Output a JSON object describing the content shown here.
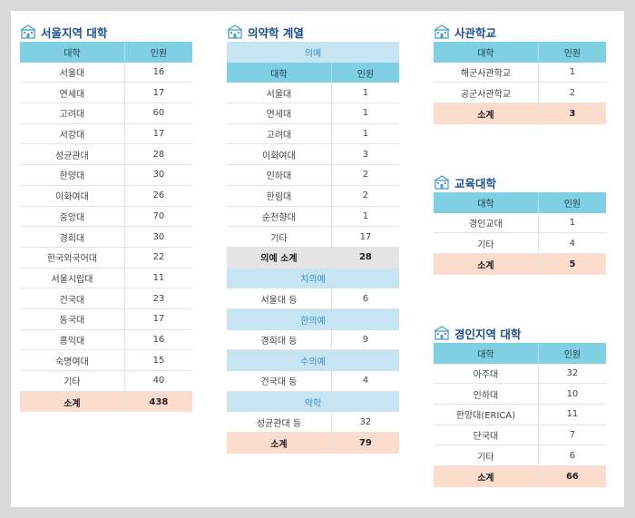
{
  "seoul": {
    "title": "서울지역 대학",
    "header": [
      "대학",
      "인원"
    ],
    "rows": [
      [
        "서울대",
        16
      ],
      [
        "연세대",
        17
      ],
      [
        "고려대",
        60
      ],
      [
        "서강대",
        17
      ],
      [
        "성균관대",
        28
      ],
      [
        "한양대",
        30
      ],
      [
        "이화여대",
        26
      ],
      [
        "중앙대",
        70
      ],
      [
        "경희대",
        30
      ],
      [
        "한국외국어대",
        22
      ],
      [
        "서울시립대",
        11
      ],
      [
        "건국대",
        23
      ],
      [
        "동국대",
        17
      ],
      [
        "홍익대",
        16
      ],
      [
        "숙명여대",
        15
      ],
      [
        "기타",
        40
      ]
    ],
    "total": [
      "소계",
      438
    ]
  },
  "medical": {
    "title": "의약학 계열",
    "header": [
      "대학",
      "인원"
    ],
    "groups": [
      {
        "name": "의예",
        "rows": [
          [
            "서울대",
            1
          ],
          [
            "연세대",
            1
          ],
          [
            "고려대",
            1
          ],
          [
            "이화여대",
            3
          ],
          [
            "인하대",
            2
          ],
          [
            "한림대",
            2
          ],
          [
            "순천향대",
            1
          ],
          [
            "기타",
            17
          ]
        ],
        "subtotal": [
          "의예 소계",
          28
        ]
      },
      {
        "name": "치의예",
        "rows": [
          [
            "서울대 등",
            6
          ]
        ]
      },
      {
        "name": "한의예",
        "rows": [
          [
            "경희대 등",
            9
          ]
        ]
      },
      {
        "name": "수의예",
        "rows": [
          [
            "건국대 등",
            4
          ]
        ]
      },
      {
        "name": "약학",
        "rows": [
          [
            "성균관대 등",
            32
          ]
        ]
      }
    ],
    "total": [
      "소계",
      79
    ]
  },
  "military": {
    "title": "사관학교",
    "header": [
      "대학",
      "인원"
    ],
    "rows": [
      [
        "해군사관학교",
        1
      ],
      [
        "공군사관학교",
        2
      ]
    ],
    "total": [
      "소계",
      3
    ]
  },
  "education": {
    "title": "교육대학",
    "header": [
      "대학",
      "인원"
    ],
    "rows": [
      [
        "경인교대",
        1
      ],
      [
        "기타",
        4
      ]
    ],
    "total": [
      "소계",
      5
    ]
  },
  "gyeongin": {
    "title": "경인지역 대학",
    "header": [
      "대학",
      "인원"
    ],
    "rows": [
      [
        "아주대",
        32
      ],
      [
        "인하대",
        10
      ],
      [
        "한양대(ERICA)",
        11
      ],
      [
        "단국대",
        7
      ],
      [
        "기타",
        6
      ]
    ],
    "total": [
      "소계",
      66
    ]
  }
}
